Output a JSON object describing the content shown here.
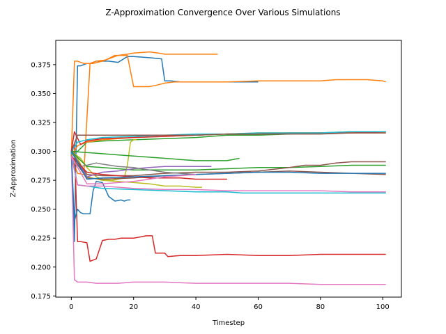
{
  "chart_data": {
    "type": "line",
    "title": "Z-Approximation Convergence Over Various Simulations",
    "xlabel": "Timestep",
    "ylabel": "Z-Approximation",
    "xlim": [
      -5,
      106
    ],
    "ylim": [
      0.174,
      0.396
    ],
    "xticks": [
      0,
      20,
      40,
      60,
      80,
      100
    ],
    "yticks": [
      0.175,
      0.2,
      0.225,
      0.25,
      0.275,
      0.3,
      0.325,
      0.35,
      0.375
    ],
    "xtick_labels": [
      "0",
      "20",
      "40",
      "60",
      "80",
      "100"
    ],
    "ytick_labels": [
      "0.175",
      "0.200",
      "0.225",
      "0.250",
      "0.275",
      "0.300",
      "0.325",
      "0.350",
      "0.375"
    ],
    "grid": false,
    "legend": false,
    "series": [
      {
        "color": "#1f77b4",
        "x": [
          0,
          1,
          2,
          3,
          5,
          6,
          8,
          12,
          15,
          18,
          20,
          25,
          29,
          30,
          32,
          35,
          40,
          50,
          60
        ],
        "y": [
          0.3,
          0.222,
          0.374,
          0.374,
          0.376,
          0.376,
          0.378,
          0.378,
          0.377,
          0.382,
          0.382,
          0.381,
          0.38,
          0.361,
          0.361,
          0.36,
          0.36,
          0.36,
          0.36
        ]
      },
      {
        "color": "#ff7f0e",
        "x": [
          0,
          1,
          2,
          4,
          5,
          7,
          10,
          12,
          15,
          18,
          20,
          25,
          28,
          30,
          35,
          40,
          47
        ],
        "y": [
          0.296,
          0.378,
          0.378,
          0.376,
          0.376,
          0.376,
          0.378,
          0.38,
          0.383,
          0.384,
          0.385,
          0.386,
          0.385,
          0.384,
          0.384,
          0.384,
          0.384
        ]
      },
      {
        "color": "#ff7f0e",
        "x": [
          0,
          2,
          4,
          6,
          8,
          11,
          14,
          16,
          18,
          20,
          22,
          25,
          27,
          30,
          33,
          40,
          50,
          60,
          70,
          80,
          85,
          90,
          95,
          100,
          101
        ],
        "y": [
          0.296,
          0.281,
          0.28,
          0.376,
          0.378,
          0.379,
          0.383,
          0.383,
          0.383,
          0.356,
          0.356,
          0.356,
          0.357,
          0.359,
          0.36,
          0.36,
          0.36,
          0.361,
          0.361,
          0.361,
          0.362,
          0.362,
          0.362,
          0.361,
          0.36
        ]
      },
      {
        "color": "#d62728",
        "x": [
          0,
          1,
          2,
          3,
          5,
          6,
          7,
          8,
          10,
          12,
          14,
          16,
          18,
          20,
          22,
          24,
          26,
          27,
          29,
          30,
          31,
          35,
          40,
          50,
          60,
          70,
          80,
          90,
          101
        ],
        "y": [
          0.296,
          0.307,
          0.222,
          0.222,
          0.221,
          0.205,
          0.206,
          0.207,
          0.223,
          0.224,
          0.224,
          0.225,
          0.225,
          0.225,
          0.226,
          0.227,
          0.227,
          0.212,
          0.212,
          0.212,
          0.209,
          0.21,
          0.21,
          0.211,
          0.21,
          0.21,
          0.211,
          0.211,
          0.211
        ]
      },
      {
        "color": "#e377c2",
        "x": [
          0,
          1,
          2,
          3,
          5,
          8,
          10,
          15,
          20,
          25,
          30,
          40,
          50,
          60,
          70,
          80,
          90,
          101
        ],
        "y": [
          0.3,
          0.189,
          0.187,
          0.187,
          0.187,
          0.186,
          0.186,
          0.186,
          0.187,
          0.187,
          0.187,
          0.186,
          0.186,
          0.186,
          0.186,
          0.185,
          0.185,
          0.185
        ]
      },
      {
        "color": "#1f77b4",
        "x": [
          0,
          1,
          2,
          3,
          4,
          5,
          6,
          7,
          8,
          10,
          12,
          14,
          16,
          17,
          18,
          19
        ],
        "y": [
          0.3,
          0.24,
          0.25,
          0.247,
          0.246,
          0.246,
          0.246,
          0.266,
          0.274,
          0.273,
          0.261,
          0.257,
          0.258,
          0.257,
          0.258,
          0.258
        ]
      },
      {
        "color": "#17becf",
        "x": [
          0,
          2,
          5,
          10,
          20,
          30,
          40,
          50,
          55,
          60,
          70,
          80,
          90,
          101
        ],
        "y": [
          0.3,
          0.271,
          0.27,
          0.268,
          0.267,
          0.266,
          0.265,
          0.265,
          0.264,
          0.264,
          0.264,
          0.264,
          0.264,
          0.264
        ]
      },
      {
        "color": "#e377c2",
        "x": [
          0,
          2,
          5,
          10,
          20,
          30,
          40,
          50,
          60,
          70,
          80,
          90,
          101
        ],
        "y": [
          0.296,
          0.271,
          0.27,
          0.27,
          0.268,
          0.267,
          0.267,
          0.266,
          0.266,
          0.266,
          0.266,
          0.265,
          0.265
        ]
      },
      {
        "color": "#2ca02c",
        "x": [
          0,
          2,
          5,
          10,
          20,
          30,
          40,
          50,
          60,
          70,
          80,
          90,
          101
        ],
        "y": [
          0.3,
          0.3,
          0.308,
          0.309,
          0.31,
          0.311,
          0.312,
          0.314,
          0.314,
          0.315,
          0.316,
          0.317,
          0.317
        ]
      },
      {
        "color": "#ff7f0e",
        "x": [
          0,
          2,
          5,
          10,
          20,
          30,
          40,
          50,
          60,
          70,
          80,
          90,
          101
        ],
        "y": [
          0.296,
          0.305,
          0.308,
          0.31,
          0.312,
          0.313,
          0.314,
          0.315,
          0.316,
          0.316,
          0.316,
          0.316,
          0.316
        ]
      },
      {
        "color": "#d62728",
        "x": [
          0,
          1,
          3,
          5,
          10,
          20,
          30,
          40,
          50,
          60,
          70,
          80,
          90,
          101
        ],
        "y": [
          0.3,
          0.317,
          0.306,
          0.309,
          0.311,
          0.312,
          0.313,
          0.314,
          0.315,
          0.315,
          0.316,
          0.316,
          0.316,
          0.317
        ]
      },
      {
        "color": "#17becf",
        "x": [
          0,
          2,
          5,
          10,
          20,
          30,
          40,
          50,
          60,
          70,
          80,
          90,
          101
        ],
        "y": [
          0.3,
          0.308,
          0.31,
          0.312,
          0.313,
          0.314,
          0.315,
          0.315,
          0.316,
          0.316,
          0.316,
          0.317,
          0.317
        ]
      },
      {
        "color": "#8c564b",
        "x": [
          0,
          2,
          5,
          10,
          20,
          30,
          40,
          50,
          60,
          70,
          80,
          90,
          101
        ],
        "y": [
          0.3,
          0.314,
          0.314,
          0.314,
          0.314,
          0.314,
          0.314,
          0.315,
          0.315,
          0.315,
          0.315,
          0.316,
          0.316
        ]
      },
      {
        "color": "#bcbd22",
        "x": [
          0,
          2,
          5,
          10,
          15,
          20,
          25,
          30,
          35,
          40,
          42
        ],
        "y": [
          0.3,
          0.294,
          0.278,
          0.275,
          0.274,
          0.273,
          0.272,
          0.27,
          0.27,
          0.269,
          0.269
        ]
      },
      {
        "color": "#bcbd22",
        "x": [
          0,
          3,
          5,
          8,
          10,
          13,
          15,
          17,
          18,
          19,
          20,
          21
        ],
        "y": [
          0.3,
          0.294,
          0.286,
          0.278,
          0.276,
          0.275,
          0.276,
          0.277,
          0.288,
          0.308,
          0.31,
          0.31
        ]
      },
      {
        "color": "#2ca02c",
        "x": [
          0,
          5,
          10,
          15,
          20,
          25,
          30,
          35,
          40,
          45,
          50,
          54
        ],
        "y": [
          0.3,
          0.299,
          0.298,
          0.297,
          0.296,
          0.295,
          0.294,
          0.293,
          0.292,
          0.292,
          0.292,
          0.294
        ]
      },
      {
        "color": "#2ca02c",
        "x": [
          0,
          5,
          10,
          15,
          20,
          30,
          40,
          50,
          60,
          70,
          80,
          90,
          101
        ],
        "y": [
          0.3,
          0.287,
          0.286,
          0.285,
          0.284,
          0.284,
          0.284,
          0.285,
          0.286,
          0.286,
          0.287,
          0.288,
          0.288
        ]
      },
      {
        "color": "#8c564b",
        "x": [
          0,
          5,
          10,
          20,
          30,
          40,
          50,
          60,
          70,
          75,
          80,
          85,
          90,
          95,
          101
        ],
        "y": [
          0.3,
          0.28,
          0.279,
          0.279,
          0.281,
          0.282,
          0.282,
          0.283,
          0.286,
          0.288,
          0.288,
          0.29,
          0.291,
          0.291,
          0.291
        ]
      },
      {
        "color": "#8c564b",
        "x": [
          0,
          5,
          10,
          20,
          30,
          40,
          50,
          60,
          70,
          80,
          90,
          101
        ],
        "y": [
          0.296,
          0.277,
          0.276,
          0.277,
          0.279,
          0.28,
          0.281,
          0.282,
          0.283,
          0.282,
          0.281,
          0.28
        ]
      },
      {
        "color": "#9467bd",
        "x": [
          0,
          5,
          10,
          15,
          20,
          25,
          30,
          35,
          40,
          45
        ],
        "y": [
          0.3,
          0.278,
          0.282,
          0.283,
          0.285,
          0.286,
          0.287,
          0.287,
          0.287,
          0.287
        ]
      },
      {
        "color": "#7f7f7f",
        "x": [
          0,
          3,
          5,
          8,
          10,
          15,
          20,
          25,
          30,
          35,
          40
        ],
        "y": [
          0.3,
          0.287,
          0.288,
          0.29,
          0.289,
          0.287,
          0.286,
          0.284,
          0.282,
          0.281,
          0.28
        ]
      },
      {
        "color": "#d62728",
        "x": [
          0,
          5,
          10,
          15,
          20,
          25,
          30,
          35,
          40,
          45,
          50
        ],
        "y": [
          0.296,
          0.282,
          0.28,
          0.279,
          0.278,
          0.277,
          0.277,
          0.277,
          0.276,
          0.276,
          0.276
        ]
      },
      {
        "color": "#1f77b4",
        "x": [
          0,
          5,
          10,
          20,
          30,
          40,
          50,
          60,
          70,
          80,
          90,
          101
        ],
        "y": [
          0.3,
          0.276,
          0.277,
          0.278,
          0.279,
          0.28,
          0.281,
          0.282,
          0.282,
          0.281,
          0.281,
          0.281
        ]
      },
      {
        "color": "#e377c2",
        "x": [
          0,
          5,
          10,
          20,
          25,
          30,
          35,
          40
        ],
        "y": [
          0.296,
          0.272,
          0.272,
          0.274,
          0.276,
          0.278,
          0.279,
          0.28
        ]
      }
    ]
  }
}
